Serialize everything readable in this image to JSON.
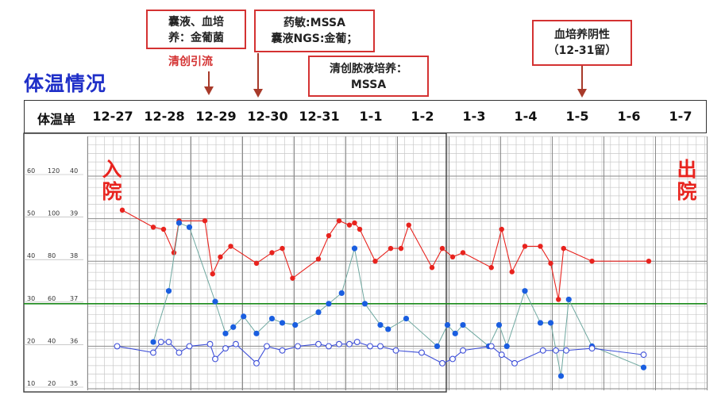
{
  "page_title": "体温情况",
  "callouts": {
    "c1": {
      "line1": "囊液、血培",
      "line2": "养：金葡菌"
    },
    "c2": {
      "line1": "药敏:MSSA",
      "line2": "囊液NGS:金葡；"
    },
    "c3": {
      "line1": "清创脓液培养：",
      "line2": "MSSA"
    },
    "c4": {
      "line1": "血培养阴性",
      "line2": "（12-31留）"
    }
  },
  "arrow_note": "清创引流",
  "markers": {
    "admission": [
      "入",
      "院"
    ],
    "discharge": [
      "出",
      "院"
    ]
  },
  "colors": {
    "accent_title": "#1f2fc8",
    "annotation": "#d43232",
    "pulse": "#e8231e",
    "temperature": "#1a5ee0",
    "reference_line": "#1a8a1a"
  },
  "chart_data": {
    "type": "line",
    "header_label": "体温单",
    "categories": [
      "12-27",
      "12-28",
      "12-29",
      "12-30",
      "12-31",
      "1-1",
      "1-2",
      "1-3",
      "1-4",
      "1-5",
      "1-6",
      "1-7"
    ],
    "y_axis_labels": [
      {
        "col1": "60",
        "col2": "120",
        "col3": "40"
      },
      {
        "col1": "50",
        "col2": "100",
        "col3": "39"
      },
      {
        "col1": "40",
        "col2": "80",
        "col3": "38"
      },
      {
        "col1": "30",
        "col2": "60",
        "col3": "37"
      },
      {
        "col1": "20",
        "col2": "40",
        "col3": "36"
      },
      {
        "col1": "10",
        "col2": "20",
        "col3": "35"
      }
    ],
    "temperature_range": [
      35,
      40
    ],
    "reference_line": 37,
    "grid": true,
    "series": [
      {
        "points": [
          [
            0.2,
            39.2
          ],
          [
            0.8,
            38.8
          ],
          [
            1.0,
            38.75
          ],
          [
            1.2,
            38.2
          ],
          [
            1.3,
            38.95
          ],
          [
            1.8,
            38.95
          ],
          [
            1.95,
            37.7
          ],
          [
            2.1,
            38.1
          ],
          [
            2.3,
            38.35
          ],
          [
            2.8,
            37.95
          ],
          [
            3.1,
            38.2
          ],
          [
            3.3,
            38.3
          ],
          [
            3.5,
            37.6
          ],
          [
            4.0,
            38.05
          ],
          [
            4.2,
            38.6
          ],
          [
            4.4,
            38.95
          ],
          [
            4.6,
            38.85
          ],
          [
            4.7,
            38.9
          ],
          [
            4.8,
            38.75
          ],
          [
            5.1,
            38.0
          ],
          [
            5.4,
            38.3
          ],
          [
            5.6,
            38.3
          ],
          [
            5.75,
            38.85
          ],
          [
            6.2,
            37.85
          ],
          [
            6.4,
            38.3
          ],
          [
            6.6,
            38.1
          ],
          [
            6.8,
            38.2
          ],
          [
            7.35,
            37.85
          ],
          [
            7.55,
            38.75
          ],
          [
            7.75,
            37.75
          ],
          [
            8.0,
            38.35
          ],
          [
            8.3,
            38.35
          ],
          [
            8.5,
            37.95
          ],
          [
            8.65,
            37.1
          ],
          [
            8.75,
            38.3
          ],
          [
            9.3,
            38.0
          ],
          [
            10.4,
            38.0
          ]
        ],
        "markers": "filled"
      },
      {
        "points": [
          [
            0.8,
            36.1
          ],
          [
            1.1,
            37.3
          ],
          [
            1.3,
            38.9
          ],
          [
            1.5,
            38.8
          ],
          [
            2.0,
            37.05
          ],
          [
            2.2,
            36.3
          ],
          [
            2.35,
            36.45
          ],
          [
            2.55,
            36.7
          ],
          [
            2.8,
            36.3
          ],
          [
            3.1,
            36.65
          ],
          [
            3.3,
            36.55
          ],
          [
            3.55,
            36.5
          ],
          [
            4.0,
            36.8
          ],
          [
            4.2,
            37.0
          ],
          [
            4.45,
            37.25
          ],
          [
            4.7,
            38.3
          ],
          [
            4.9,
            37.0
          ],
          [
            5.2,
            36.5
          ],
          [
            5.35,
            36.4
          ],
          [
            5.7,
            36.65
          ],
          [
            6.3,
            36.0
          ],
          [
            6.5,
            36.5
          ],
          [
            6.65,
            36.3
          ],
          [
            6.8,
            36.5
          ],
          [
            7.3,
            36.0
          ],
          [
            7.5,
            36.5
          ],
          [
            7.65,
            36.0
          ],
          [
            8.0,
            37.3
          ],
          [
            8.3,
            36.55
          ],
          [
            8.5,
            36.55
          ],
          [
            8.7,
            35.3
          ],
          [
            8.85,
            37.1
          ],
          [
            9.3,
            36.0
          ],
          [
            10.3,
            35.5
          ]
        ],
        "markers": "filled"
      },
      {
        "points": [
          [
            0.1,
            36.0
          ],
          [
            0.8,
            35.85
          ],
          [
            0.95,
            36.1
          ],
          [
            1.1,
            36.1
          ],
          [
            1.3,
            35.85
          ],
          [
            1.5,
            36.0
          ],
          [
            1.9,
            36.05
          ],
          [
            2.0,
            35.7
          ],
          [
            2.2,
            35.95
          ],
          [
            2.4,
            36.05
          ],
          [
            2.8,
            35.6
          ],
          [
            3.0,
            36.0
          ],
          [
            3.3,
            35.9
          ],
          [
            3.6,
            36.0
          ],
          [
            4.0,
            36.05
          ],
          [
            4.2,
            36.0
          ],
          [
            4.4,
            36.05
          ],
          [
            4.6,
            36.05
          ],
          [
            4.75,
            36.1
          ],
          [
            5.0,
            36.0
          ],
          [
            5.2,
            36.0
          ],
          [
            5.5,
            35.9
          ],
          [
            6.0,
            35.85
          ],
          [
            6.4,
            35.6
          ],
          [
            6.6,
            35.7
          ],
          [
            6.8,
            35.9
          ],
          [
            7.35,
            36.0
          ],
          [
            7.55,
            35.8
          ],
          [
            7.8,
            35.6
          ],
          [
            8.35,
            35.9
          ],
          [
            8.6,
            35.9
          ],
          [
            8.8,
            35.9
          ],
          [
            9.3,
            35.95
          ],
          [
            10.3,
            35.8
          ]
        ],
        "markers": "hollow"
      }
    ],
    "admission_category": "12-27",
    "discharge_category": "1-7"
  }
}
